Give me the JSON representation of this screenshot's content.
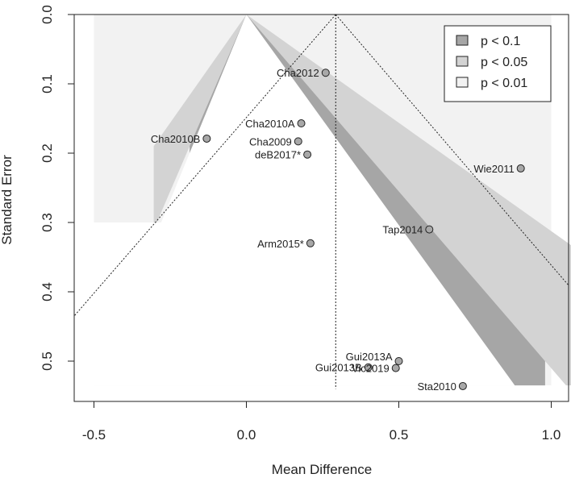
{
  "chart_data": {
    "type": "scatter",
    "subtype": "contour-enhanced funnel plot",
    "xlabel": "Mean Difference",
    "ylabel": "Standard Error",
    "xlim": [
      -0.5,
      1.0
    ],
    "ylim": [
      0.535,
      0.0
    ],
    "y_reversed": true,
    "x_ticks": [
      -0.5,
      0.0,
      0.5,
      1.0
    ],
    "x_tick_labels": [
      "-0.5",
      "0.0",
      "0.5",
      "1.0"
    ],
    "y_ticks": [
      0.0,
      0.1,
      0.2,
      0.3,
      0.4,
      0.5
    ],
    "y_tick_labels": [
      "0.0",
      "0.1",
      "0.2",
      "0.3",
      "0.4",
      "0.5"
    ],
    "grid": false,
    "funnel_center": 0.0,
    "estimate": 0.293,
    "legend": {
      "position": "top-right",
      "entries": [
        {
          "label": "p < 0.1",
          "color": "#a6a6a6"
        },
        {
          "label": "p < 0.05",
          "color": "#d3d3d3"
        },
        {
          "label": "p < 0.01",
          "color": "#f2f2f2"
        }
      ]
    },
    "colors": {
      "p_lt_0.1": "#a6a6a6",
      "p_lt_0.05": "#d3d3d3",
      "p_lt_0.01": "#f2f2f2",
      "point_fill": "#a8a8a8"
    },
    "points": [
      {
        "label": "Cha2012",
        "x": 0.26,
        "y": 0.084
      },
      {
        "label": "Cha2010A",
        "x": 0.18,
        "y": 0.157
      },
      {
        "label": "Cha2010B",
        "x": -0.13,
        "y": 0.179
      },
      {
        "label": "Cha2009",
        "x": 0.17,
        "y": 0.183
      },
      {
        "label": "deB2017*",
        "x": 0.2,
        "y": 0.202
      },
      {
        "label": "Wie2011",
        "x": 0.9,
        "y": 0.222
      },
      {
        "label": "Tap2014",
        "x": 0.6,
        "y": 0.31
      },
      {
        "label": "Arm2015*",
        "x": 0.21,
        "y": 0.33
      },
      {
        "label": "Gui2013A",
        "x": 0.5,
        "y": 0.5
      },
      {
        "label": "Gui2013B",
        "x": 0.4,
        "y": 0.509
      },
      {
        "label": "Vic2019",
        "x": 0.49,
        "y": 0.51
      },
      {
        "label": "Sta2010",
        "x": 0.71,
        "y": 0.536
      }
    ]
  }
}
